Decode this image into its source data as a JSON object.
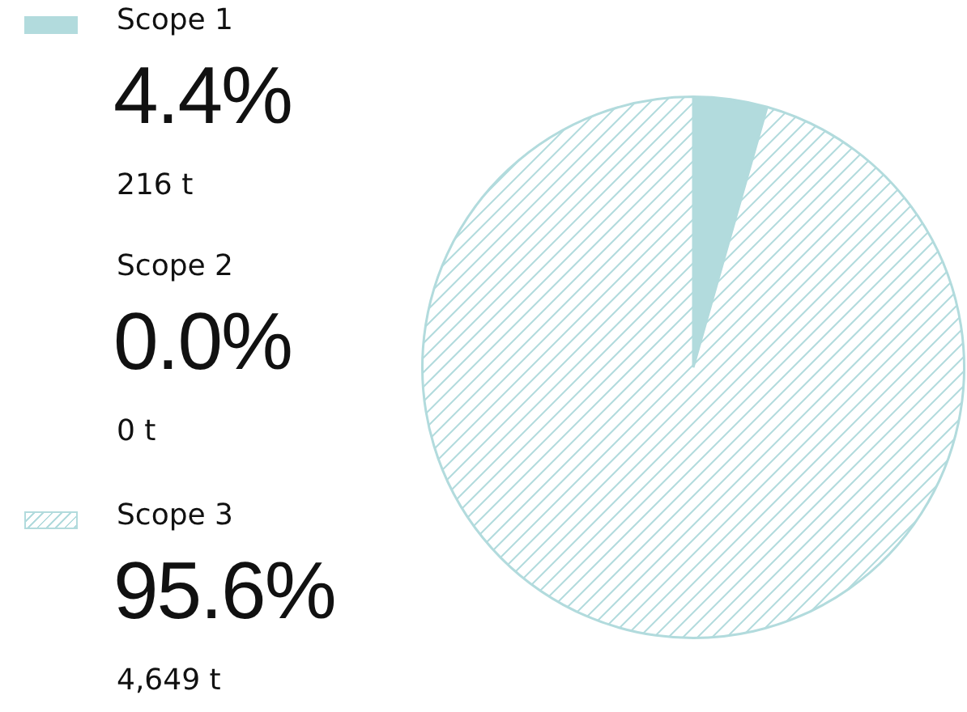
{
  "chart_data": {
    "type": "pie",
    "categories": [
      "Scope 1",
      "Scope 2",
      "Scope 3"
    ],
    "values": [
      4.4,
      0.0,
      95.6
    ],
    "colors": [
      "#b2dbdd",
      "#b2dbdd",
      "#b2dbdd"
    ],
    "value_labels": [
      "4.4%",
      "0.0%",
      "95.6%"
    ],
    "annotations": [
      "216 t",
      "0 t",
      "4,649 t"
    ],
    "legend": "left"
  }
}
